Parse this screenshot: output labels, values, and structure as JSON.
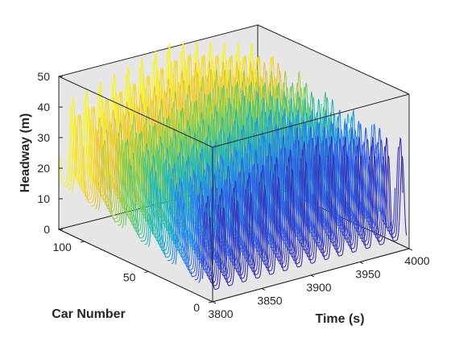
{
  "chart_data": {
    "type": "line",
    "subtype": "waterfall-3d",
    "xlabel": "Time (s)",
    "ylabel": "Car Number",
    "zlabel": "Headway (m)",
    "xlim": [
      3800,
      4000
    ],
    "ylim": [
      0,
      120
    ],
    "zlim": [
      0,
      50
    ],
    "xticks": [
      "3800",
      "3850",
      "3900",
      "3950",
      "4000"
    ],
    "yticks": [
      "0",
      "50",
      "100"
    ],
    "zticks": [
      "0",
      "10",
      "20",
      "30",
      "40",
      "50"
    ],
    "colormap": "parula",
    "colors": [
      "#3e26a8",
      "#2f72f8",
      "#18b5c9",
      "#6ccf5b",
      "#f3c33a",
      "#f9fb15"
    ],
    "pane_color": "#e6e6e6",
    "series_count": 40,
    "car_range": [
      2,
      119
    ],
    "oscillation_period_s": 14,
    "headway_trough_m": [
      3,
      15
    ],
    "headway_peak_m": [
      25,
      49
    ],
    "grid": false,
    "legend": "none"
  }
}
